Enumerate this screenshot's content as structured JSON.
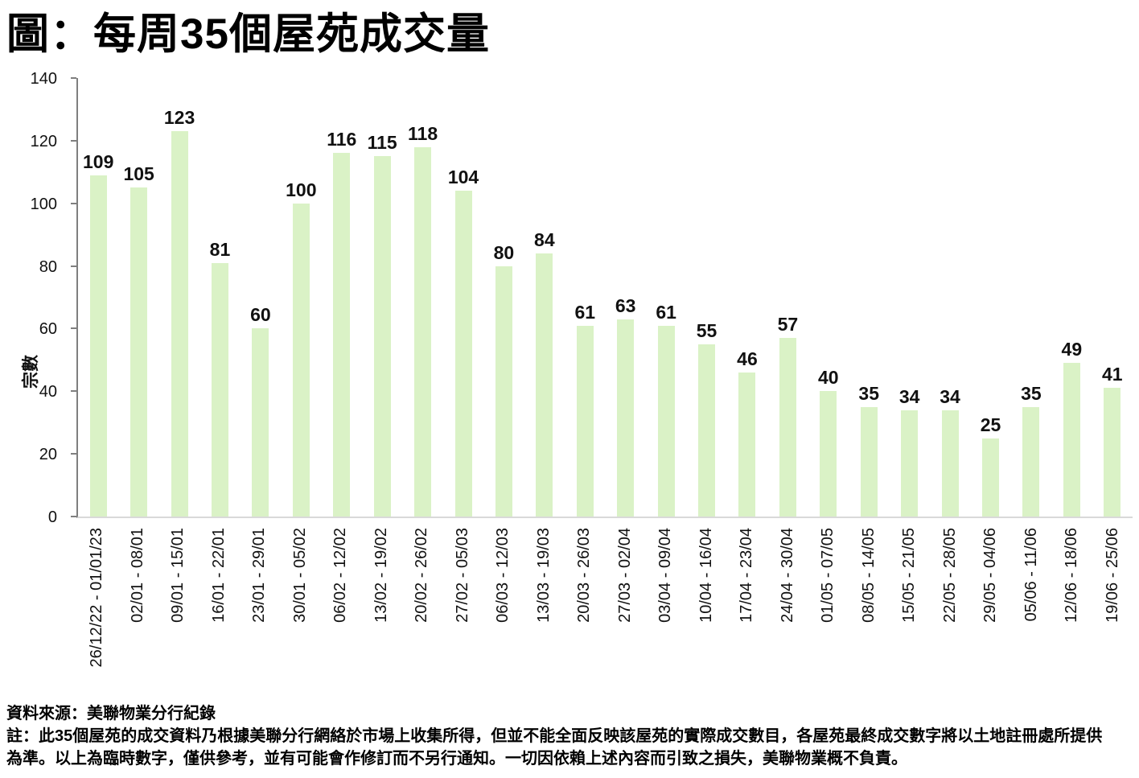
{
  "chart_data": {
    "type": "bar",
    "title": "圖：每周35個屋苑成交量",
    "xlabel": "",
    "ylabel": "宗數",
    "categories": [
      "26/12/22 - 01/01/23",
      "02/01 - 08/01",
      "09/01 - 15/01",
      "16/01 - 22/01",
      "23/01 - 29/01",
      "30/01 - 05/02",
      "06/02 - 12/02",
      "13/02 - 19/02",
      "20/02 - 26/02",
      "27/02 - 05/03",
      "06/03 - 12/03",
      "13/03 - 19/03",
      "20/03 - 26/03",
      "27/03 - 02/04",
      "03/04 - 09/04",
      "10/04 - 16/04",
      "17/04 - 23/04",
      "24/04 - 30/04",
      "01/05 - 07/05",
      "08/05 - 14/05",
      "15/05 - 21/05",
      "22/05 - 28/05",
      "29/05 - 04/06",
      "05/06 - 11/06",
      "12/06 - 18/06",
      "19/06 - 25/06"
    ],
    "values": [
      109,
      105,
      123,
      81,
      60,
      100,
      116,
      115,
      118,
      104,
      80,
      84,
      61,
      63,
      61,
      55,
      46,
      57,
      40,
      35,
      34,
      34,
      25,
      35,
      49,
      41
    ],
    "ylim": [
      0,
      140
    ],
    "yticks": [
      0,
      20,
      40,
      60,
      80,
      100,
      120,
      140
    ],
    "grid": false,
    "legend_position": "none",
    "data_labels": true,
    "x_tick_rotation": 90,
    "bar_color": "#daf2c6"
  },
  "colors": {
    "bar": "#daf2c6",
    "y_axis_line": "#7f7f7f",
    "x_axis_line": "#d9d9d9",
    "text": "#000000"
  },
  "footer": {
    "source": "資料來源：美聯物業分行紀錄",
    "note_line1": "註：此35個屋苑的成交資料乃根據美聯分行網絡於市場上收集所得，但並不能全面反映該屋苑的實際成交數目，各屋苑最終成交數字將以土地註冊處所提供",
    "note_line2": "為準。以上為臨時數字，僅供參考，並有可能會作修訂而不另行通知。一切因依賴上述內容而引致之損失，美聯物業概不負責。"
  }
}
